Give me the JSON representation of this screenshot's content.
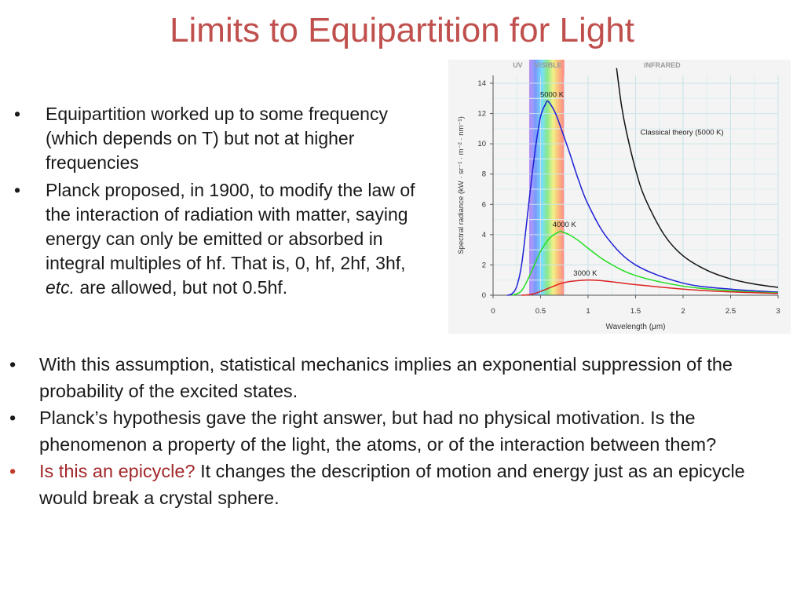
{
  "slide": {
    "title": "Limits to Equipartition for Light",
    "top_bullets": [
      {
        "text": "Equipartition worked up to some frequency (which depends on T) but not at higher frequencies"
      },
      {
        "pre": "Planck proposed, in 1900, to modify the law of the interaction of radiation with matter, saying energy can only be emitted or absorbed in integral multiples of hf.  That is, 0, hf, 2hf, 3hf, ",
        "em": "etc.",
        "post": "  are allowed, but not 0.5hf."
      }
    ],
    "bottom_bullets": [
      {
        "text": "With this assumption, statistical mechanics implies an exponential suppression of the probability of the excited states."
      },
      {
        "text": "Planck’s hypothesis gave the right answer, but had no physical motivation.  Is the phenomenon a property of the light, the atoms, or of the interaction between them?"
      },
      {
        "highlight": "Is this an epicycle?",
        "rest": " It changes the description of motion and energy just  as an epicycle would break a crystal sphere."
      }
    ],
    "bullet_symbol": "•",
    "accent_color": "#c0504d"
  },
  "chart_data": {
    "type": "line",
    "xlabel": "Wavelength (μm)",
    "ylabel": "Spectral radiance (kW · sr⁻¹ · m⁻² · nm⁻¹)",
    "xlim": [
      0,
      3
    ],
    "ylim": [
      0,
      14
    ],
    "x_ticks": [
      "0",
      "0.5",
      "1",
      "1.5",
      "2",
      "2.5",
      "3"
    ],
    "y_ticks": [
      "0",
      "2",
      "4",
      "6",
      "8",
      "10",
      "12",
      "14"
    ],
    "grid": true,
    "bands": [
      {
        "label": "UV",
        "range": [
          0,
          0.38
        ]
      },
      {
        "label": "VISIBLE",
        "range": [
          0.38,
          0.75
        ]
      },
      {
        "label": "INFRARED",
        "range": [
          0.75,
          3
        ]
      }
    ],
    "series": [
      {
        "name": "5000 K",
        "color": "#1f1fd6",
        "x": [
          0.15,
          0.2,
          0.25,
          0.3,
          0.35,
          0.4,
          0.45,
          0.5,
          0.55,
          0.58,
          0.65,
          0.7,
          0.8,
          0.9,
          1.0,
          1.2,
          1.5,
          2.0,
          2.5,
          3.0
        ],
        "y": [
          0.0,
          0.1,
          0.6,
          2.0,
          4.6,
          7.4,
          9.9,
          11.8,
          12.6,
          12.8,
          12.1,
          11.3,
          9.5,
          7.6,
          6.0,
          3.8,
          2.0,
          0.8,
          0.4,
          0.2
        ]
      },
      {
        "name": "4000 K",
        "color": "#22dd22",
        "x": [
          0.2,
          0.3,
          0.4,
          0.5,
          0.6,
          0.7,
          0.72,
          0.8,
          0.9,
          1.0,
          1.2,
          1.5,
          2.0,
          2.5,
          3.0
        ],
        "y": [
          0.0,
          0.3,
          1.5,
          2.9,
          3.8,
          4.2,
          4.2,
          4.0,
          3.6,
          3.1,
          2.2,
          1.3,
          0.6,
          0.3,
          0.15
        ]
      },
      {
        "name": "3000 K",
        "color": "#dd2222",
        "x": [
          0.3,
          0.4,
          0.5,
          0.6,
          0.7,
          0.8,
          0.97,
          1.1,
          1.3,
          1.5,
          2.0,
          2.5,
          3.0
        ],
        "y": [
          0.0,
          0.05,
          0.25,
          0.5,
          0.75,
          0.9,
          1.0,
          0.98,
          0.85,
          0.7,
          0.4,
          0.22,
          0.12
        ]
      },
      {
        "name": "Classical theory (5000 K)",
        "color": "#111111",
        "x": [
          1.3,
          1.35,
          1.4,
          1.5,
          1.6,
          1.8,
          2.0,
          2.25,
          2.5,
          2.75,
          3.0
        ],
        "y": [
          15,
          12.6,
          10.9,
          8.3,
          6.4,
          4.0,
          2.6,
          1.65,
          1.08,
          0.74,
          0.52
        ]
      }
    ]
  }
}
